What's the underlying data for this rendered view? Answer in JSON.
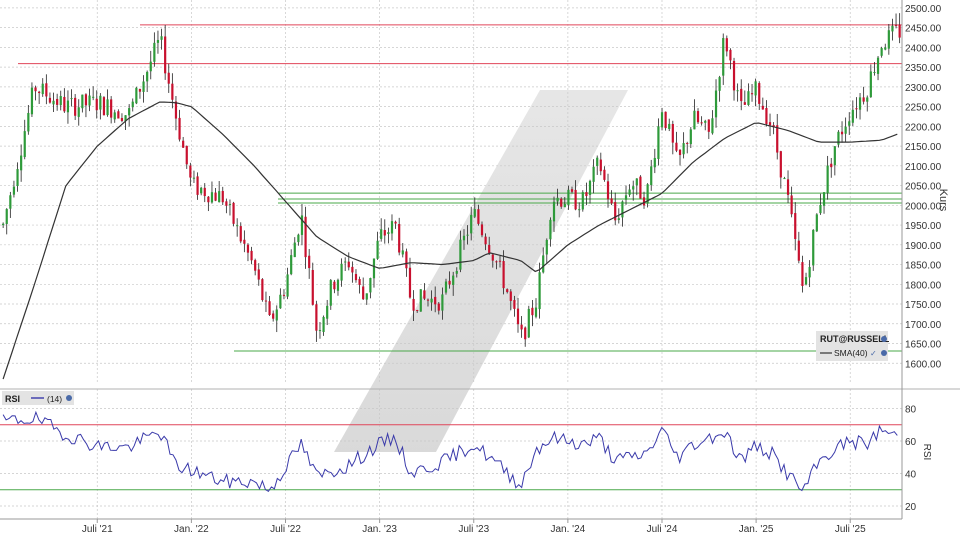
{
  "chart_data": [
    {
      "type": "candlestick",
      "ylabel": "Kurs",
      "ylim": [
        1550,
        2520
      ],
      "yticks": [
        "2500.00",
        "2450.00",
        "2400.00",
        "2350.00",
        "2300.00",
        "2250.00",
        "2200.00",
        "2150.00",
        "2100.00",
        "2050.00",
        "2000.00",
        "1950.00",
        "1900.00",
        "1850.00",
        "1800.00",
        "1750.00",
        "1700.00",
        "1650.00",
        "1600.00"
      ],
      "legend": {
        "symbol": "RUT@RUSSELL",
        "sma_label": "SMA(40)"
      },
      "horizontal_lines": [
        {
          "value": 2457,
          "color": "#e0465a"
        },
        {
          "value": 2359,
          "color": "#e0465a"
        },
        {
          "value": 2031,
          "color": "#4aa84a"
        },
        {
          "value": 2016,
          "color": "#4aa84a"
        },
        {
          "value": 2006,
          "color": "#4aa84a"
        },
        {
          "value": 1631,
          "color": "#4aa84a"
        }
      ],
      "x_time_range": [
        "2021-01",
        "2025-10"
      ],
      "price_path_anchors": [
        [
          "2021-01",
          1950
        ],
        [
          "2021-03",
          2300
        ],
        [
          "2021-05",
          2250
        ],
        [
          "2021-07",
          2260
        ],
        [
          "2021-09",
          2230
        ],
        [
          "2021-11",
          2420
        ],
        [
          "2021-12",
          2230
        ],
        [
          "2022-01",
          2050
        ],
        [
          "2022-03",
          2020
        ],
        [
          "2022-05",
          1840
        ],
        [
          "2022-06",
          1700
        ],
        [
          "2022-07",
          1800
        ],
        [
          "2022-08",
          1980
        ],
        [
          "2022-09",
          1680
        ],
        [
          "2022-10",
          1800
        ],
        [
          "2022-11",
          1860
        ],
        [
          "2022-12",
          1760
        ],
        [
          "2023-01",
          1920
        ],
        [
          "2023-02",
          1950
        ],
        [
          "2023-03",
          1760
        ],
        [
          "2023-05",
          1760
        ],
        [
          "2023-07",
          1980
        ],
        [
          "2023-08",
          1900
        ],
        [
          "2023-09",
          1800
        ],
        [
          "2023-10",
          1660
        ],
        [
          "2023-11",
          1760
        ],
        [
          "2023-12",
          2020
        ],
        [
          "2024-02",
          2010
        ],
        [
          "2024-03",
          2110
        ],
        [
          "2024-04",
          1960
        ],
        [
          "2024-05",
          2060
        ],
        [
          "2024-06",
          2020
        ],
        [
          "2024-07",
          2250
        ],
        [
          "2024-08",
          2100
        ],
        [
          "2024-09",
          2220
        ],
        [
          "2024-10",
          2180
        ],
        [
          "2024-11",
          2430
        ],
        [
          "2024-12",
          2240
        ],
        [
          "2025-01",
          2290
        ],
        [
          "2025-02",
          2200
        ],
        [
          "2025-03",
          2020
        ],
        [
          "2025-04",
          1780
        ],
        [
          "2025-05",
          2000
        ],
        [
          "2025-06",
          2150
        ],
        [
          "2025-07",
          2240
        ],
        [
          "2025-08",
          2290
        ],
        [
          "2025-09",
          2410
        ],
        [
          "2025-10",
          2440
        ]
      ],
      "sma_anchors": [
        [
          "2021-01",
          1560
        ],
        [
          "2021-03",
          1800
        ],
        [
          "2021-05",
          2050
        ],
        [
          "2021-07",
          2150
        ],
        [
          "2021-09",
          2220
        ],
        [
          "2021-11",
          2262
        ],
        [
          "2021-12",
          2260
        ],
        [
          "2022-01",
          2250
        ],
        [
          "2022-03",
          2180
        ],
        [
          "2022-05",
          2100
        ],
        [
          "2022-07",
          2010
        ],
        [
          "2022-09",
          1920
        ],
        [
          "2022-11",
          1870
        ],
        [
          "2023-01",
          1840
        ],
        [
          "2023-03",
          1855
        ],
        [
          "2023-05",
          1850
        ],
        [
          "2023-07",
          1860
        ],
        [
          "2023-08",
          1880
        ],
        [
          "2023-10",
          1860
        ],
        [
          "2023-11",
          1830
        ],
        [
          "2024-01",
          1900
        ],
        [
          "2024-03",
          1950
        ],
        [
          "2024-05",
          1990
        ],
        [
          "2024-07",
          2030
        ],
        [
          "2024-09",
          2110
        ],
        [
          "2024-11",
          2170
        ],
        [
          "2025-01",
          2210
        ],
        [
          "2025-03",
          2190
        ],
        [
          "2025-05",
          2160
        ],
        [
          "2025-07",
          2160
        ],
        [
          "2025-09",
          2165
        ],
        [
          "2025-10",
          2180
        ]
      ]
    },
    {
      "type": "line",
      "title": "RSI",
      "legend_label": "(14)",
      "ylabel": "RSI",
      "ylim": [
        12,
        92
      ],
      "yticks": [
        "80",
        "60",
        "40",
        "20"
      ],
      "horizontal_lines": [
        {
          "value": 70,
          "color": "#e0465a"
        },
        {
          "value": 30,
          "color": "#4aa84a"
        }
      ],
      "anchors": [
        [
          "2021-01",
          72
        ],
        [
          "2021-03",
          74
        ],
        [
          "2021-05",
          64
        ],
        [
          "2021-07",
          57
        ],
        [
          "2021-09",
          56
        ],
        [
          "2021-11",
          66
        ],
        [
          "2021-12",
          45
        ],
        [
          "2022-01",
          42
        ],
        [
          "2022-03",
          35
        ],
        [
          "2022-05",
          35
        ],
        [
          "2022-06",
          30
        ],
        [
          "2022-08",
          58
        ],
        [
          "2022-09",
          38
        ],
        [
          "2022-11",
          45
        ],
        [
          "2023-01",
          58
        ],
        [
          "2023-02",
          62
        ],
        [
          "2023-03",
          40
        ],
        [
          "2023-05",
          47
        ],
        [
          "2023-07",
          58
        ],
        [
          "2023-08",
          50
        ],
        [
          "2023-10",
          33
        ],
        [
          "2023-11",
          55
        ],
        [
          "2023-12",
          62
        ],
        [
          "2024-02",
          58
        ],
        [
          "2024-03",
          62
        ],
        [
          "2024-04",
          48
        ],
        [
          "2024-06",
          52
        ],
        [
          "2024-07",
          67
        ],
        [
          "2024-08",
          50
        ],
        [
          "2024-09",
          58
        ],
        [
          "2024-11",
          66
        ],
        [
          "2024-12",
          48
        ],
        [
          "2025-01",
          57
        ],
        [
          "2025-02",
          52
        ],
        [
          "2025-03",
          40
        ],
        [
          "2025-04",
          29
        ],
        [
          "2025-05",
          47
        ],
        [
          "2025-06",
          55
        ],
        [
          "2025-07",
          60
        ],
        [
          "2025-08",
          58
        ],
        [
          "2025-09",
          67
        ],
        [
          "2025-10",
          63
        ]
      ]
    }
  ],
  "x_axis": {
    "ticks": [
      {
        "label": "Juli '21",
        "date": "2021-07"
      },
      {
        "label": "Jan. '22",
        "date": "2022-01"
      },
      {
        "label": "Juli '22",
        "date": "2022-07"
      },
      {
        "label": "Jan. '23",
        "date": "2023-01"
      },
      {
        "label": "Juli '23",
        "date": "2023-07"
      },
      {
        "label": "Jan. '24",
        "date": "2024-01"
      },
      {
        "label": "Juli '24",
        "date": "2024-07"
      },
      {
        "label": "Jan. '25",
        "date": "2025-01"
      },
      {
        "label": "Juli '25",
        "date": "2025-07"
      }
    ]
  },
  "colors": {
    "up": "#2e9a3a",
    "down": "#c8102e",
    "sma": "#333333",
    "rsi": "#3a3aaa",
    "grid": "#c8c8c8",
    "axis_text": "#333333"
  }
}
